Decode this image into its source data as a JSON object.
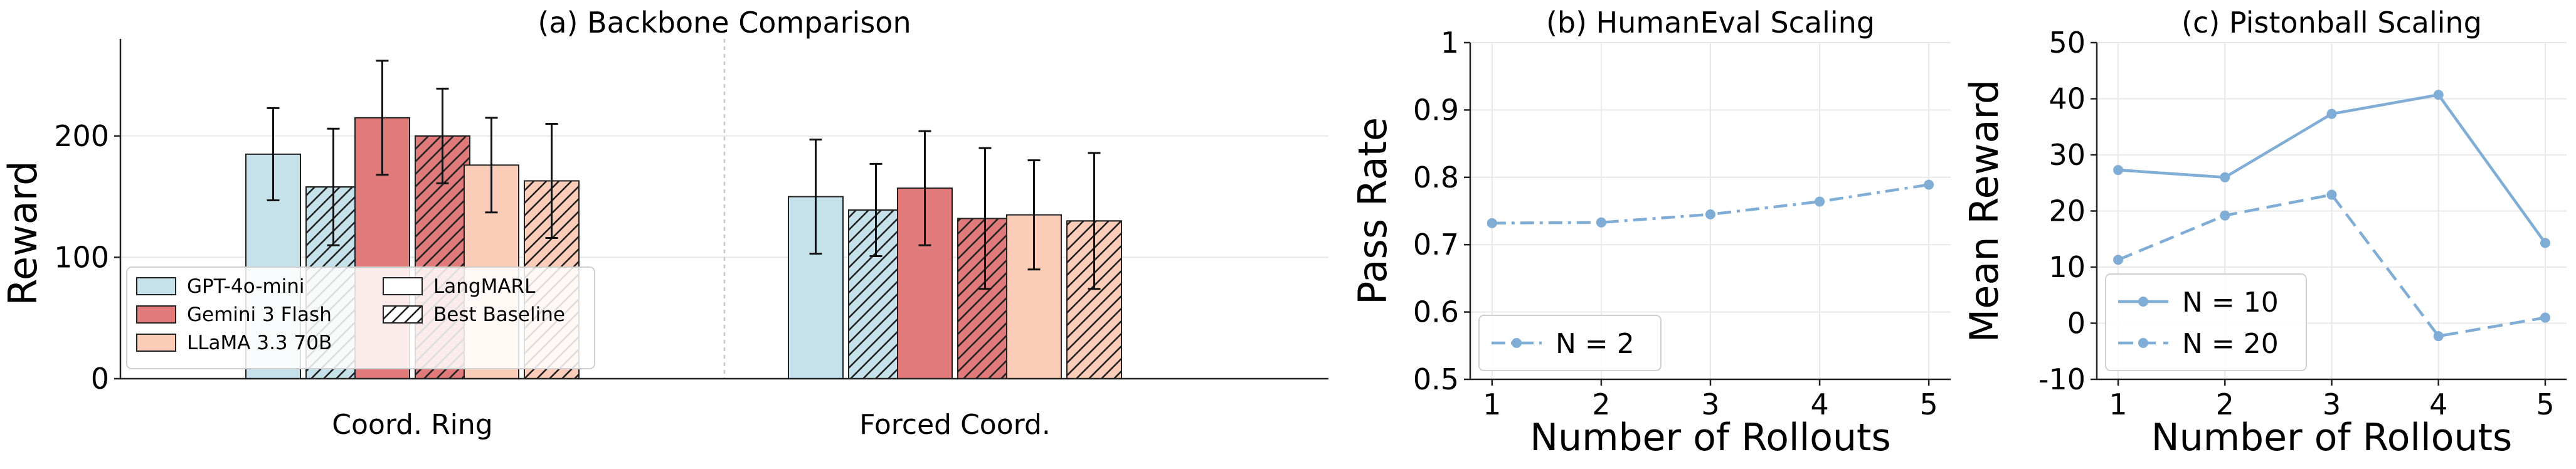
{
  "chart_data": [
    {
      "type": "bar",
      "title": "(a) Backbone Comparison",
      "xlabel": "",
      "ylabel": "Reward",
      "ylim": [
        0,
        280
      ],
      "yticks": [
        0,
        100,
        200
      ],
      "grid": true,
      "categories": [
        "Coord. Ring",
        "Forced Coord."
      ],
      "series": [
        {
          "name": "GPT-4o-mini",
          "color": "#c5e2ea",
          "hatched": false,
          "values": [
            185,
            150
          ],
          "errors": [
            38,
            47
          ]
        },
        {
          "name": "GPT-4o-mini",
          "color": "#c5e2ea",
          "hatched": true,
          "values": [
            158,
            139
          ],
          "errors": [
            48,
            38
          ]
        },
        {
          "name": "Gemini 3 Flash",
          "color": "#e07a7b",
          "hatched": false,
          "values": [
            215,
            157
          ],
          "errors": [
            47,
            47
          ]
        },
        {
          "name": "Gemini 3 Flash",
          "color": "#e07a7b",
          "hatched": true,
          "values": [
            200,
            132
          ],
          "errors": [
            39,
            58
          ]
        },
        {
          "name": "LLaMA 3.3 70B",
          "color": "#fbcdb8",
          "hatched": false,
          "values": [
            176,
            135
          ],
          "errors": [
            39,
            45
          ]
        },
        {
          "name": "LLaMA 3.3 70B",
          "color": "#fbcdb8",
          "hatched": true,
          "values": [
            163,
            130
          ],
          "errors": [
            47,
            56
          ]
        }
      ],
      "legend": {
        "placement": "lower-left",
        "entries": [
          {
            "label": "GPT-4o-mini",
            "color": "#c5e2ea",
            "hatched": false
          },
          {
            "label": "Gemini 3 Flash",
            "color": "#e07a7b",
            "hatched": false
          },
          {
            "label": "LLaMA 3.3 70B",
            "color": "#fbcdb8",
            "hatched": false
          },
          {
            "label": "LangMARL",
            "color": "#ffffff",
            "hatched": false
          },
          {
            "label": "Best Baseline",
            "color": "#ffffff",
            "hatched": true
          }
        ]
      }
    },
    {
      "type": "line",
      "title": "(b) HumanEval Scaling",
      "xlabel": "Number of Rollouts",
      "ylabel": "Pass Rate",
      "xlim": [
        0.8,
        5.2
      ],
      "ylim": [
        0.5,
        1.0
      ],
      "xticks": [
        1,
        2,
        3,
        4,
        5
      ],
      "yticks": [
        0.5,
        0.6,
        0.7,
        0.8,
        0.9,
        1.0
      ],
      "grid": true,
      "legend_placement": "lower-left",
      "series": [
        {
          "name": "N = 2",
          "color": "#7fadd6",
          "dash": "dashdot",
          "x": [
            1,
            2,
            3,
            4,
            5
          ],
          "y": [
            0.732,
            0.733,
            0.745,
            0.764,
            0.789
          ]
        }
      ]
    },
    {
      "type": "line",
      "title": "(c) Pistonball Scaling",
      "xlabel": "Number of Rollouts",
      "ylabel": "Mean Reward",
      "xlim": [
        0.8,
        5.2
      ],
      "ylim": [
        -10,
        50
      ],
      "xticks": [
        1,
        2,
        3,
        4,
        5
      ],
      "yticks": [
        -10,
        0,
        10,
        20,
        30,
        40,
        50
      ],
      "grid": true,
      "legend_placement": "lower-left",
      "series": [
        {
          "name": "N = 10",
          "color": "#7fadd6",
          "dash": "solid",
          "x": [
            1,
            2,
            3,
            4,
            5
          ],
          "y": [
            27.3,
            26.0,
            37.3,
            40.7,
            14.3
          ]
        },
        {
          "name": "N = 20",
          "color": "#7fadd6",
          "dash": "dashed",
          "x": [
            1,
            2,
            3,
            4,
            5
          ],
          "y": [
            11.3,
            19.2,
            22.9,
            -2.3,
            1.0
          ]
        }
      ]
    }
  ]
}
